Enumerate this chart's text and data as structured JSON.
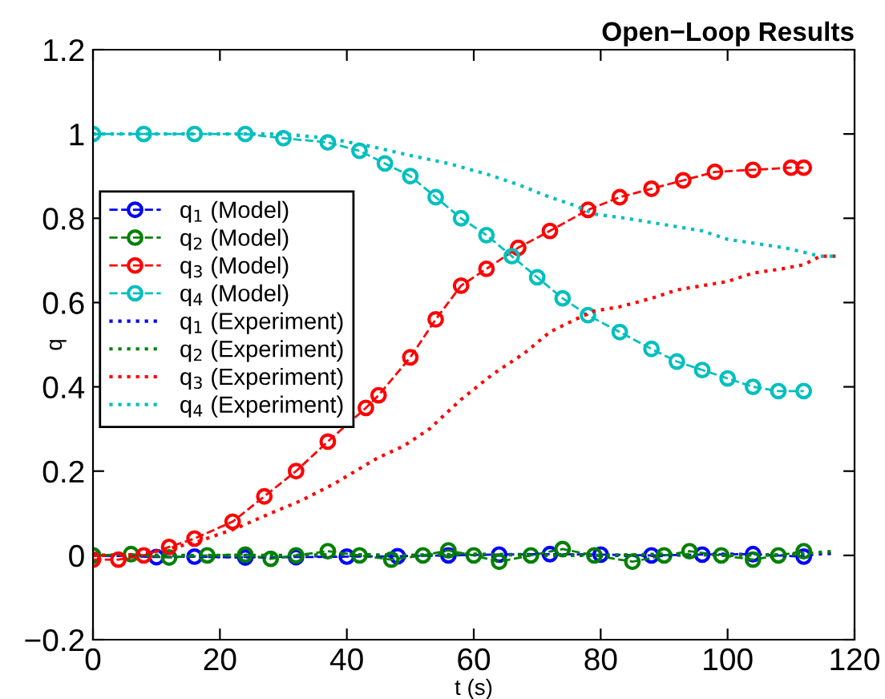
{
  "chart_data": {
    "type": "line",
    "title": "Open−Loop Results",
    "xlabel": "t (s)",
    "ylabel": "q",
    "xlim": [
      0,
      120
    ],
    "xticks": [
      0,
      20,
      40,
      60,
      80,
      100,
      120
    ],
    "ylim": [
      -0.2,
      1.2
    ],
    "yticks": [
      -0.2,
      0,
      0.2,
      0.4,
      0.6,
      0.8,
      1,
      1.2
    ],
    "grid": false,
    "legend": "left",
    "series": [
      {
        "name": "q$_{1}$ (Model)",
        "color": "#0000ff",
        "marker": "circle",
        "line_style": "dashed",
        "x": [
          0,
          10,
          16,
          24,
          32,
          40,
          48,
          56,
          64,
          72,
          80,
          88,
          96,
          104,
          112
        ],
        "values": [
          0,
          -0.004,
          -0.003,
          -0.005,
          -0.004,
          -0.003,
          -0.002,
          0,
          0.002,
          0.003,
          0.002,
          0,
          0.002,
          0.003,
          -0.003
        ]
      },
      {
        "name": "q$_{2}$ (Model)",
        "color": "#008000",
        "marker": "circle",
        "line_style": "dashed",
        "x": [
          0,
          6,
          12,
          18,
          24,
          28,
          32,
          37,
          42,
          47,
          52,
          56,
          60,
          64,
          69,
          74,
          79,
          85,
          90,
          94,
          99,
          104,
          108,
          112
        ],
        "values": [
          0,
          0.003,
          -0.005,
          0,
          0.002,
          -0.008,
          0,
          0.01,
          0,
          -0.01,
          0,
          0.012,
          0,
          -0.015,
          0,
          0.015,
          0,
          -0.015,
          0,
          0.01,
          0,
          -0.01,
          0,
          0.01
        ]
      },
      {
        "name": "q$_{3}$ (Model)",
        "color": "#ff0000",
        "marker": "circle",
        "line_style": "dashed",
        "x": [
          0,
          4,
          8,
          12,
          16,
          22,
          27,
          32,
          37,
          43,
          45,
          50,
          54,
          58,
          62,
          67,
          72,
          78,
          83,
          88,
          93,
          98,
          104,
          110,
          112
        ],
        "values": [
          -0.01,
          -0.01,
          0,
          0.02,
          0.04,
          0.08,
          0.14,
          0.2,
          0.27,
          0.35,
          0.38,
          0.47,
          0.56,
          0.64,
          0.68,
          0.73,
          0.77,
          0.82,
          0.85,
          0.87,
          0.89,
          0.91,
          0.915,
          0.92,
          0.92
        ]
      },
      {
        "name": "q$_{4}$ (Model)",
        "color": "#00bfbf",
        "marker": "circle",
        "line_style": "dashed",
        "x": [
          0,
          8,
          16,
          24,
          30,
          37,
          42,
          46,
          50,
          54,
          58,
          62,
          66,
          70,
          74,
          78,
          83,
          88,
          92,
          96,
          100,
          104,
          108,
          112
        ],
        "values": [
          1,
          1,
          1,
          1,
          0.99,
          0.98,
          0.96,
          0.93,
          0.9,
          0.85,
          0.8,
          0.76,
          0.71,
          0.66,
          0.61,
          0.57,
          0.53,
          0.49,
          0.46,
          0.44,
          0.42,
          0.4,
          0.39,
          0.39
        ]
      },
      {
        "name": "q$_{1}$ (Experiment)",
        "color": "#0000ff",
        "marker": "none",
        "line_style": "dotted",
        "x": [
          0,
          10,
          20,
          30,
          40,
          50,
          60,
          70,
          80,
          90,
          100,
          110,
          117
        ],
        "values": [
          0,
          0,
          -0.003,
          -0.002,
          0,
          0,
          0.002,
          0.002,
          0,
          0,
          0.003,
          0,
          0.005
        ]
      },
      {
        "name": "q$_{2}$ (Experiment)",
        "color": "#008000",
        "marker": "none",
        "line_style": "dotted",
        "x": [
          0,
          10,
          20,
          30,
          40,
          50,
          60,
          70,
          80,
          90,
          100,
          110,
          117
        ],
        "values": [
          0,
          0,
          0,
          0,
          0.002,
          0,
          0.003,
          0,
          0,
          0.003,
          0,
          0.002,
          0.01
        ]
      },
      {
        "name": "q$_{3}$ (Experiment)",
        "color": "#ff0000",
        "marker": "none",
        "line_style": "dotted",
        "x": [
          0,
          5,
          10,
          16,
          22.7,
          28,
          32.8,
          38,
          44.7,
          49,
          53,
          58,
          63,
          68,
          72,
          76,
          79,
          83,
          88,
          92,
          96,
          100,
          104,
          108.6,
          112,
          114.6,
          117
        ],
        "values": [
          0,
          0,
          0.01,
          0.03,
          0.065,
          0.1,
          0.13,
          0.17,
          0.23,
          0.26,
          0.3,
          0.37,
          0.43,
          0.48,
          0.53,
          0.56,
          0.58,
          0.59,
          0.61,
          0.63,
          0.64,
          0.65,
          0.67,
          0.68,
          0.69,
          0.71,
          0.71
        ]
      },
      {
        "name": "q$_{4}$ (Experiment)",
        "color": "#00bfbf",
        "marker": "none",
        "line_style": "dotted",
        "x": [
          0,
          10,
          20,
          25,
          30,
          37,
          44,
          49.7,
          56,
          62,
          67,
          72,
          76,
          79,
          84,
          88,
          92,
          96,
          100,
          104.5,
          109,
          114.6,
          117
        ],
        "values": [
          1,
          1,
          1,
          1,
          1,
          0.99,
          0.97,
          0.95,
          0.93,
          0.905,
          0.88,
          0.85,
          0.83,
          0.81,
          0.8,
          0.79,
          0.78,
          0.77,
          0.75,
          0.74,
          0.73,
          0.71,
          0.71
        ]
      }
    ]
  }
}
